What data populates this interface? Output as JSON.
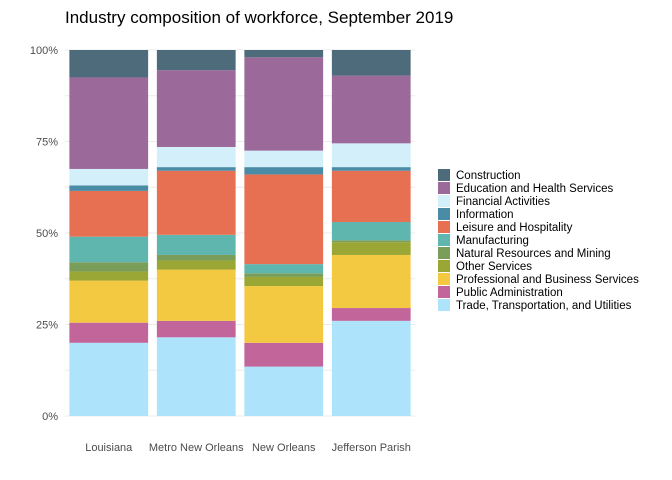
{
  "chart_data": {
    "type": "bar",
    "stacked": "percent",
    "title": "Industry composition of workforce, September 2019",
    "xlabel": "",
    "ylabel": "",
    "ylim": [
      0,
      100
    ],
    "yticks": [
      "0%",
      "25%",
      "50%",
      "75%",
      "100%"
    ],
    "grid": true,
    "legend_position": "right",
    "categories": [
      "Louisiana",
      "Metro New Orleans",
      "New Orleans",
      "Jefferson Parish"
    ],
    "series": [
      {
        "name": "Trade, Transportation, and Utilities",
        "color": "#ade4fb",
        "values": [
          20.0,
          21.5,
          13.5,
          26.0
        ]
      },
      {
        "name": "Public Administration",
        "color": "#c2659a",
        "values": [
          5.5,
          4.5,
          6.5,
          3.5
        ]
      },
      {
        "name": "Professional and Business Services",
        "color": "#f3c941",
        "values": [
          11.5,
          14.0,
          15.5,
          14.5
        ]
      },
      {
        "name": "Other Services",
        "color": "#9aa735",
        "values": [
          2.5,
          2.5,
          2.5,
          3.5
        ]
      },
      {
        "name": "Natural Resources and Mining",
        "color": "#7a9e59",
        "values": [
          2.5,
          1.5,
          1.0,
          0.5
        ]
      },
      {
        "name": "Manufacturing",
        "color": "#5eb6ae",
        "values": [
          7.0,
          5.5,
          2.5,
          5.0
        ]
      },
      {
        "name": "Leisure and Hospitality",
        "color": "#e87052",
        "values": [
          12.5,
          17.5,
          24.5,
          14.0
        ]
      },
      {
        "name": "Information",
        "color": "#4a8ba5",
        "values": [
          1.5,
          1.0,
          2.0,
          1.0
        ]
      },
      {
        "name": "Financial Activities",
        "color": "#d2effa",
        "values": [
          4.5,
          5.5,
          4.5,
          6.5
        ]
      },
      {
        "name": "Education and Health Services",
        "color": "#9b6a9a",
        "values": [
          25.0,
          21.0,
          25.5,
          18.5
        ]
      },
      {
        "name": "Construction",
        "color": "#4e6b7b",
        "values": [
          7.5,
          5.5,
          2.0,
          7.0
        ]
      }
    ]
  }
}
